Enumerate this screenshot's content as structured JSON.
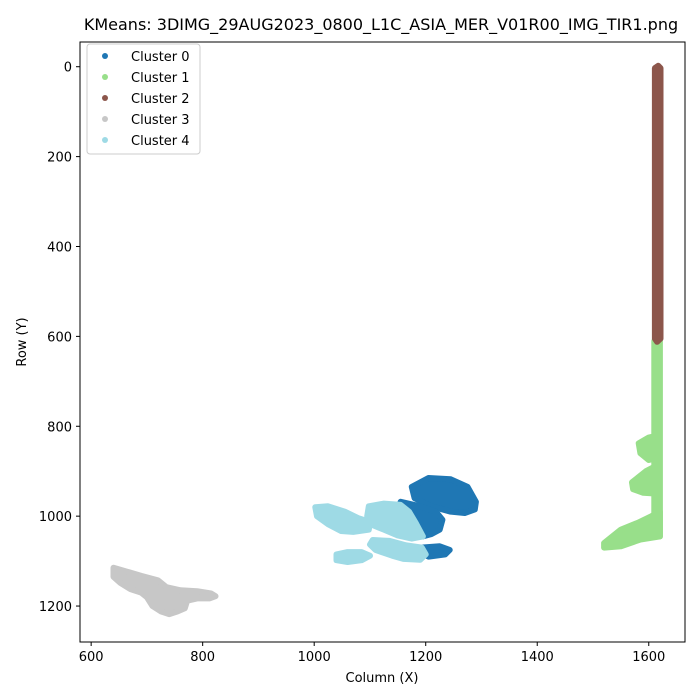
{
  "chart_data": {
    "type": "scatter",
    "title": "KMeans: 3DIMG_29AUG2023_0800_L1C_ASIA_MER_V01R00_IMG_TIR1.png",
    "xlabel": "Column (X)",
    "ylabel": "Row (Y)",
    "xlim": [
      580,
      1665
    ],
    "ylim": [
      1280,
      -55
    ],
    "y_inverted": true,
    "xticks": [
      600,
      800,
      1000,
      1200,
      1400,
      1600
    ],
    "yticks": [
      0,
      200,
      400,
      600,
      800,
      1000,
      1200
    ],
    "grid": false,
    "legend_position": "top-left",
    "series": [
      {
        "name": "Cluster 0",
        "label": "Cluster 0",
        "color": "#1f77b4",
        "regions": [
          {
            "kind": "polygon",
            "points": [
              [
                1175,
                935
              ],
              [
                1205,
                915
              ],
              [
                1245,
                918
              ],
              [
                1275,
                935
              ],
              [
                1290,
                968
              ],
              [
                1288,
                985
              ],
              [
                1270,
                993
              ],
              [
                1245,
                990
              ],
              [
                1210,
                978
              ],
              [
                1180,
                960
              ]
            ]
          },
          {
            "kind": "polygon",
            "points": [
              [
                1155,
                968
              ],
              [
                1190,
                978
              ],
              [
                1218,
                990
              ],
              [
                1230,
                1008
              ],
              [
                1225,
                1030
              ],
              [
                1210,
                1040
              ],
              [
                1195,
                1045
              ],
              [
                1182,
                1020
              ],
              [
                1165,
                990
              ]
            ]
          },
          {
            "kind": "polygon",
            "points": [
              [
                1192,
                1070
              ],
              [
                1225,
                1067
              ],
              [
                1243,
                1075
              ],
              [
                1235,
                1085
              ],
              [
                1205,
                1090
              ],
              [
                1192,
                1082
              ]
            ]
          }
        ]
      },
      {
        "name": "Cluster 1",
        "label": "Cluster 1",
        "color": "#98df8a",
        "regions": [
          {
            "kind": "polygon",
            "points": [
              [
                1610,
                610
              ],
              [
                1620,
                610
              ],
              [
                1620,
                1045
              ],
              [
                1610,
                1045
              ]
            ]
          },
          {
            "kind": "polygon",
            "points": [
              [
                1582,
                838
              ],
              [
                1600,
                825
              ],
              [
                1618,
                820
              ],
              [
                1618,
                870
              ],
              [
                1600,
                875
              ],
              [
                1585,
                860
              ]
            ]
          },
          {
            "kind": "polygon",
            "points": [
              [
                1570,
                925
              ],
              [
                1595,
                900
              ],
              [
                1618,
                885
              ],
              [
                1618,
                950
              ],
              [
                1590,
                948
              ],
              [
                1572,
                940
              ]
            ]
          },
          {
            "kind": "polygon",
            "points": [
              [
                1520,
                1060
              ],
              [
                1550,
                1030
              ],
              [
                1580,
                1015
              ],
              [
                1605,
                1000
              ],
              [
                1620,
                990
              ],
              [
                1620,
                1045
              ],
              [
                1585,
                1052
              ],
              [
                1550,
                1067
              ],
              [
                1520,
                1070
              ]
            ]
          }
        ]
      },
      {
        "name": "Cluster 2",
        "label": "Cluster 2",
        "color": "#8c564b",
        "regions": [
          {
            "kind": "polygon",
            "points": [
              [
                1611,
                3
              ],
              [
                1617,
                -2
              ],
              [
                1621,
                3
              ],
              [
                1621,
                605
              ],
              [
                1615,
                612
              ],
              [
                1611,
                605
              ]
            ]
          }
        ]
      },
      {
        "name": "Cluster 3",
        "label": "Cluster 3",
        "color": "#c7c7c7",
        "regions": [
          {
            "kind": "polygon",
            "points": [
              [
                640,
                1115
              ],
              [
                668,
                1125
              ],
              [
                690,
                1133
              ],
              [
                720,
                1143
              ],
              [
                735,
                1158
              ],
              [
                760,
                1165
              ],
              [
                790,
                1167
              ],
              [
                815,
                1172
              ],
              [
                823,
                1178
              ],
              [
                812,
                1183
              ],
              [
                790,
                1183
              ],
              [
                772,
                1188
              ],
              [
                768,
                1205
              ],
              [
                755,
                1212
              ],
              [
                740,
                1218
              ],
              [
                725,
                1212
              ],
              [
                710,
                1200
              ],
              [
                700,
                1180
              ],
              [
                690,
                1170
              ],
              [
                670,
                1162
              ],
              [
                652,
                1148
              ],
              [
                640,
                1135
              ]
            ]
          }
        ]
      },
      {
        "name": "Cluster 4",
        "label": "Cluster 4",
        "color": "#9edae5",
        "regions": [
          {
            "kind": "polygon",
            "points": [
              [
                1002,
                980
              ],
              [
                1025,
                978
              ],
              [
                1055,
                990
              ],
              [
                1080,
                1005
              ],
              [
                1100,
                1013
              ],
              [
                1098,
                1030
              ],
              [
                1070,
                1035
              ],
              [
                1048,
                1033
              ],
              [
                1025,
                1018
              ],
              [
                1005,
                1000
              ]
            ]
          },
          {
            "kind": "polygon",
            "points": [
              [
                1098,
                978
              ],
              [
                1125,
                972
              ],
              [
                1155,
                975
              ],
              [
                1170,
                990
              ],
              [
                1182,
                1015
              ],
              [
                1195,
                1045
              ],
              [
                1175,
                1050
              ],
              [
                1150,
                1043
              ],
              [
                1125,
                1030
              ],
              [
                1105,
                1020
              ],
              [
                1095,
                1000
              ]
            ]
          },
          {
            "kind": "polygon",
            "points": [
              [
                1105,
                1053
              ],
              [
                1135,
                1055
              ],
              [
                1165,
                1065
              ],
              [
                1193,
                1070
              ],
              [
                1200,
                1085
              ],
              [
                1190,
                1097
              ],
              [
                1160,
                1095
              ],
              [
                1140,
                1088
              ],
              [
                1110,
                1075
              ],
              [
                1100,
                1063
              ]
            ]
          },
          {
            "kind": "polygon",
            "points": [
              [
                1040,
                1085
              ],
              [
                1060,
                1080
              ],
              [
                1085,
                1080
              ],
              [
                1100,
                1088
              ],
              [
                1085,
                1098
              ],
              [
                1060,
                1102
              ],
              [
                1040,
                1098
              ]
            ]
          }
        ]
      }
    ]
  }
}
